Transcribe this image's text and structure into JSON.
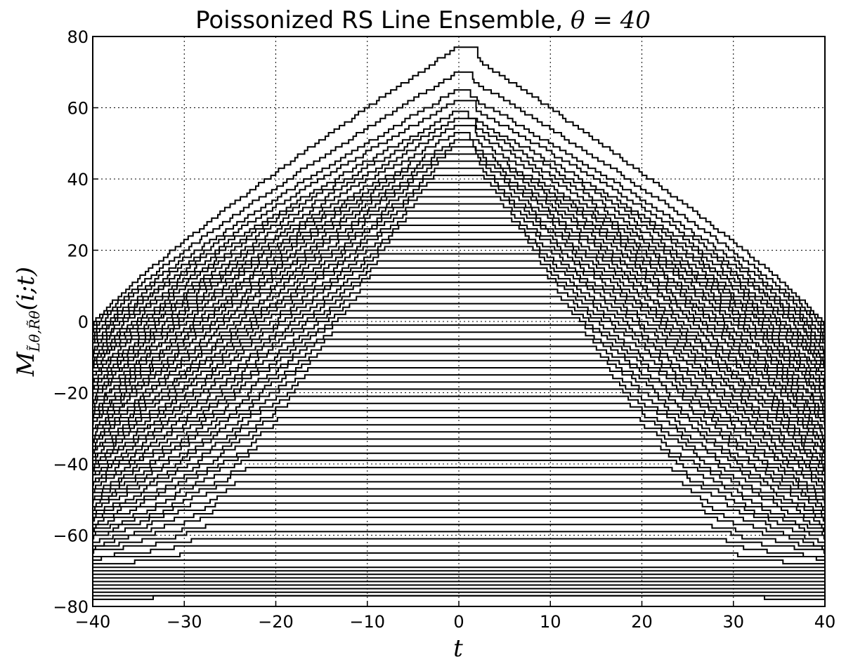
{
  "chart_data": {
    "type": "line",
    "title": "Poissonized RS Line Ensemble, ",
    "title_math": "θ = 40",
    "xlabel": "t",
    "ylabel": {
      "main": "M",
      "subscript": "L̃θ,R̃θ",
      "args": "(i;t)"
    },
    "xlim": [
      -40,
      40
    ],
    "ylim": [
      -80,
      80
    ],
    "x_ticks": [
      -40,
      -30,
      -20,
      -10,
      0,
      10,
      20,
      30,
      40
    ],
    "y_ticks": [
      -80,
      -60,
      -40,
      -20,
      0,
      20,
      40,
      60,
      80
    ],
    "x_tick_labels": [
      "−40",
      "−30",
      "−20",
      "−10",
      "0",
      "10",
      "20",
      "30",
      "40"
    ],
    "y_tick_labels": [
      "−80",
      "−60",
      "−40",
      "−20",
      "0",
      "20",
      "40",
      "60",
      "80"
    ],
    "grid": true,
    "line_color": "#000000",
    "curve_style": "step",
    "num_curves": 78,
    "series_endpoints": {
      "description_values_at_t0": [
        77,
        70,
        65,
        62,
        59,
        57,
        55,
        53,
        51,
        49,
        47,
        45,
        43,
        41,
        39,
        37,
        35,
        33,
        31,
        29,
        27,
        25,
        23,
        21,
        19,
        17,
        15,
        13,
        11,
        9,
        7,
        5,
        3,
        1,
        -1,
        -3,
        -5,
        -7,
        -9,
        -11,
        -13,
        -15,
        -17,
        -19,
        -21,
        -23,
        -25,
        -27,
        -29,
        -31,
        -33,
        -35,
        -37,
        -39,
        -41,
        -43,
        -45,
        -47,
        -49,
        -51,
        -53,
        -55,
        -57,
        -59,
        -61,
        -63,
        -65,
        -67,
        -69,
        -71,
        -73,
        -75,
        -76,
        -77,
        -77,
        -77,
        -77,
        -77
      ],
      "boundary_values_at_t_pm40": [
        -1,
        -2,
        -3,
        -4,
        -5,
        -6,
        -7,
        -8,
        -9,
        -10,
        -11,
        -12,
        -13,
        -14,
        -15,
        -16,
        -17,
        -18,
        -19,
        -20,
        -21,
        -22,
        -23,
        -24,
        -25,
        -26,
        -27,
        -28,
        -29,
        -30,
        -31,
        -32,
        -33,
        -34,
        -35,
        -36,
        -37,
        -38,
        -39,
        -40,
        -41,
        -42,
        -43,
        -44,
        -45,
        -46,
        -47,
        -48,
        -49,
        -50,
        -51,
        -52,
        -53,
        -54,
        -55,
        -56,
        -57,
        -58,
        -59,
        -60,
        -61,
        -62,
        -63,
        -64,
        -65,
        -66,
        -67,
        -68,
        -69,
        -70,
        -71,
        -72,
        -73,
        -74,
        -75,
        -76,
        -77,
        -78
      ]
    }
  }
}
